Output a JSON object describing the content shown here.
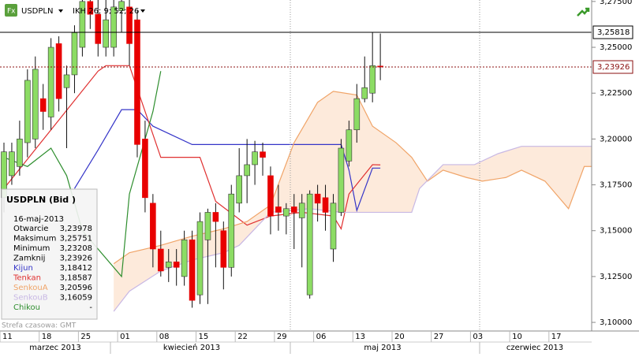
{
  "toolbar": {
    "symbol": "USDPLN",
    "indicator": "IKH 26; 9; 52; 26"
  },
  "chart_data": {
    "type": "candlestick",
    "x": [
      "2013-03-11",
      "2013-03-12",
      "2013-03-13",
      "2013-03-14",
      "2013-03-15",
      "2013-03-18",
      "2013-03-19",
      "2013-03-20",
      "2013-03-21",
      "2013-03-22",
      "2013-03-25",
      "2013-03-26",
      "2013-03-27",
      "2013-03-28",
      "2013-03-29",
      "2013-04-01",
      "2013-04-02",
      "2013-04-03",
      "2013-04-04",
      "2013-04-05",
      "2013-04-08",
      "2013-04-09",
      "2013-04-10",
      "2013-04-11",
      "2013-04-12",
      "2013-04-15",
      "2013-04-16",
      "2013-04-17",
      "2013-04-18",
      "2013-04-19",
      "2013-04-22",
      "2013-04-23",
      "2013-04-24",
      "2013-04-25",
      "2013-04-26",
      "2013-04-29",
      "2013-04-30",
      "2013-05-01",
      "2013-05-02",
      "2013-05-03",
      "2013-05-06",
      "2013-05-07",
      "2013-05-08",
      "2013-05-09",
      "2013-05-10",
      "2013-05-13",
      "2013-05-14",
      "2013-05-15",
      "2013-05-16"
    ],
    "open": [
      3.168,
      3.18,
      3.185,
      3.198,
      3.2,
      3.222,
      3.212,
      3.252,
      3.228,
      3.235,
      3.25,
      3.275,
      3.268,
      3.25,
      3.25,
      3.27,
      3.272,
      3.265,
      3.2,
      3.165,
      3.14,
      3.13,
      3.133,
      3.125,
      3.145,
      3.115,
      3.145,
      3.16,
      3.15,
      3.13,
      3.165,
      3.18,
      3.186,
      3.193,
      3.18,
      3.163,
      3.158,
      3.163,
      3.157,
      3.115,
      3.17,
      3.168,
      3.14,
      3.16,
      3.188,
      3.205,
      3.222,
      3.225,
      3.23978
    ],
    "high": [
      3.198,
      3.198,
      3.21,
      3.238,
      3.245,
      3.23,
      3.255,
      3.256,
      3.24,
      3.262,
      3.28,
      3.282,
      3.28,
      3.28,
      3.28,
      3.28,
      3.278,
      3.27,
      3.21,
      3.17,
      3.15,
      3.14,
      3.14,
      3.15,
      3.15,
      3.16,
      3.162,
      3.165,
      3.155,
      3.175,
      3.195,
      3.2,
      3.199,
      3.198,
      3.185,
      3.175,
      3.165,
      3.17,
      3.17,
      3.172,
      3.175,
      3.175,
      3.17,
      3.2,
      3.21,
      3.23,
      3.245,
      3.258,
      3.25751
    ],
    "low": [
      3.16,
      3.175,
      3.18,
      3.19,
      3.195,
      3.205,
      3.205,
      3.215,
      3.195,
      3.225,
      3.245,
      3.26,
      3.245,
      3.245,
      3.245,
      3.258,
      3.24,
      3.19,
      3.16,
      3.13,
      3.125,
      3.122,
      3.12,
      3.12,
      3.108,
      3.11,
      3.11,
      3.13,
      3.118,
      3.125,
      3.16,
      3.165,
      3.175,
      3.18,
      3.148,
      3.15,
      3.148,
      3.14,
      3.13,
      3.113,
      3.155,
      3.15,
      3.133,
      3.158,
      3.185,
      3.198,
      3.22,
      3.22,
      3.23208
    ],
    "close": [
      3.193,
      3.193,
      3.2,
      3.232,
      3.238,
      3.215,
      3.25,
      3.222,
      3.235,
      3.258,
      3.275,
      3.268,
      3.252,
      3.265,
      3.272,
      3.275,
      3.252,
      3.197,
      3.168,
      3.14,
      3.128,
      3.133,
      3.13,
      3.145,
      3.112,
      3.155,
      3.16,
      3.155,
      3.13,
      3.17,
      3.18,
      3.186,
      3.193,
      3.19,
      3.158,
      3.16,
      3.162,
      3.16,
      3.165,
      3.17,
      3.165,
      3.16,
      3.165,
      3.195,
      3.205,
      3.222,
      3.228,
      3.24,
      3.23926
    ],
    "up_color": "#8cdc64",
    "down_color": "#e80000",
    "lines": [
      {
        "name": "Kijun",
        "color": "#3535c8",
        "x": [
          "2013-03-22",
          "2013-03-27",
          "2013-04-01",
          "2013-04-03",
          "2013-04-05",
          "2013-04-12",
          "2013-05-09",
          "2013-05-10",
          "2013-05-13",
          "2013-05-15",
          "2013-05-16"
        ],
        "values": [
          3.173,
          3.194,
          3.216,
          3.216,
          3.207,
          3.197,
          3.197,
          3.183,
          3.161,
          3.18412,
          3.18412
        ]
      },
      {
        "name": "Tenkan",
        "color": "#e03030",
        "x": [
          "2013-03-11",
          "2013-03-27",
          "2013-03-28",
          "2013-04-02",
          "2013-04-04",
          "2013-04-08",
          "2013-04-15",
          "2013-04-17",
          "2013-04-23",
          "2013-04-26",
          "2013-05-02",
          "2013-05-08",
          "2013-05-09",
          "2013-05-10",
          "2013-05-15",
          "2013-05-16"
        ],
        "values": [
          3.173,
          3.237,
          3.24,
          3.24,
          3.215,
          3.19,
          3.19,
          3.166,
          3.153,
          3.158,
          3.16,
          3.158,
          3.151,
          3.17,
          3.186,
          3.18587
        ]
      },
      {
        "name": "SenkouA",
        "color": "#f0a468",
        "x": [
          "2013-03-29",
          "2013-04-02",
          "2013-04-08",
          "2013-04-12",
          "2013-04-18",
          "2013-04-23",
          "2013-04-26",
          "2013-05-01",
          "2013-05-06",
          "2013-05-08",
          "2013-05-13",
          "2013-05-15",
          "2013-05-20",
          "2013-05-22",
          "2013-05-24",
          "2013-05-28",
          "2013-05-31",
          "2013-06-04",
          "2013-06-07",
          "2013-06-11",
          "2013-06-14",
          "2013-06-19",
          "2013-06-21",
          "2013-06-24"
        ],
        "values": [
          3.132,
          3.138,
          3.142,
          3.147,
          3.151,
          3.155,
          3.164,
          3.198,
          3.22,
          3.226,
          3.224,
          3.207,
          3.198,
          3.19,
          3.177,
          3.183,
          3.179,
          3.177,
          3.179,
          3.183,
          3.177,
          3.162,
          3.185,
          3.185
        ]
      },
      {
        "name": "SenkouB",
        "color": "#c8b8e4",
        "x": [
          "2013-03-29",
          "2013-04-02",
          "2013-04-08",
          "2013-04-12",
          "2013-04-18",
          "2013-04-22",
          "2013-04-26",
          "2013-05-03",
          "2013-05-09",
          "2013-05-22",
          "2013-05-23",
          "2013-05-28",
          "2013-06-03",
          "2013-06-06",
          "2013-06-11",
          "2013-06-24"
        ],
        "values": [
          3.106,
          3.117,
          3.128,
          3.134,
          3.138,
          3.142,
          3.16,
          3.162,
          3.16,
          3.16,
          3.173,
          3.186,
          3.186,
          3.192,
          3.196,
          3.196
        ]
      },
      {
        "name": "Chikou",
        "color": "#2e8e2e",
        "x": [
          "2013-03-11",
          "2013-03-14",
          "2013-03-19",
          "2013-03-21",
          "2013-03-25",
          "2013-03-27",
          "2013-04-01",
          "2013-04-02",
          "2013-04-05",
          "2013-04-08"
        ],
        "values": [
          3.19,
          3.185,
          3.195,
          3.18,
          3.15,
          3.14,
          3.125,
          3.17,
          3.215,
          3.237
        ]
      }
    ],
    "price_lines": [
      {
        "value": 3.25818,
        "label": "3,25818",
        "color": "#000000"
      },
      {
        "value": 3.23926,
        "label": "3,23926",
        "color": "#8b1010"
      }
    ],
    "ylim": [
      3.0953,
      3.2758
    ],
    "yticks": [
      {
        "value": 3.1,
        "label": "3,10000"
      },
      {
        "value": 3.125,
        "label": "3,12500"
      },
      {
        "value": 3.15,
        "label": "3,15000"
      },
      {
        "value": 3.175,
        "label": "3,17500"
      },
      {
        "value": 3.2,
        "label": "3,20000"
      },
      {
        "value": 3.225,
        "label": "3,22500"
      },
      {
        "value": 3.25,
        "label": "3,25000"
      },
      {
        "value": 3.275,
        "label": "3,27500"
      }
    ],
    "xticks": [
      {
        "value": "2013-03-11",
        "label": "11"
      },
      {
        "value": "2013-03-18",
        "label": "18"
      },
      {
        "value": "2013-03-25",
        "label": "25"
      },
      {
        "value": "2013-04-01",
        "label": "01"
      },
      {
        "value": "2013-04-08",
        "label": "08"
      },
      {
        "value": "2013-04-15",
        "label": "15"
      },
      {
        "value": "2013-04-22",
        "label": "22"
      },
      {
        "value": "2013-04-29",
        "label": "29"
      },
      {
        "value": "2013-05-06",
        "label": "06"
      },
      {
        "value": "2013-05-13",
        "label": "13"
      },
      {
        "value": "2013-05-20",
        "label": "20"
      },
      {
        "value": "2013-05-27",
        "label": "27"
      },
      {
        "value": "2013-06-03",
        "label": "03"
      },
      {
        "value": "2013-06-10",
        "label": "10"
      },
      {
        "value": "2013-06-17",
        "label": "17"
      }
    ],
    "months": [
      "marzec 2013",
      "kwiecień 2013",
      "maj 2013",
      "czerwiec 2013"
    ]
  },
  "info_box": {
    "title": "USDPLN (Bid )",
    "date": "16-maj-2013",
    "rows": [
      {
        "label": "Otwarcie",
        "value": "3,23978"
      },
      {
        "label": "Maksimum",
        "value": "3,25751"
      },
      {
        "label": "Minimum",
        "value": "3,23208"
      },
      {
        "label": "Zamknij",
        "value": "3,23926"
      },
      {
        "label": "Kijun",
        "value": "3,18412"
      },
      {
        "label": "Tenkan",
        "value": "3,18587"
      },
      {
        "label": "SenkouA",
        "value": "3,20596"
      },
      {
        "label": "SenkouB",
        "value": "3,16059"
      },
      {
        "label": "Chikou",
        "value": "-"
      }
    ]
  },
  "timezone": "Strefa czasowa: GMT"
}
